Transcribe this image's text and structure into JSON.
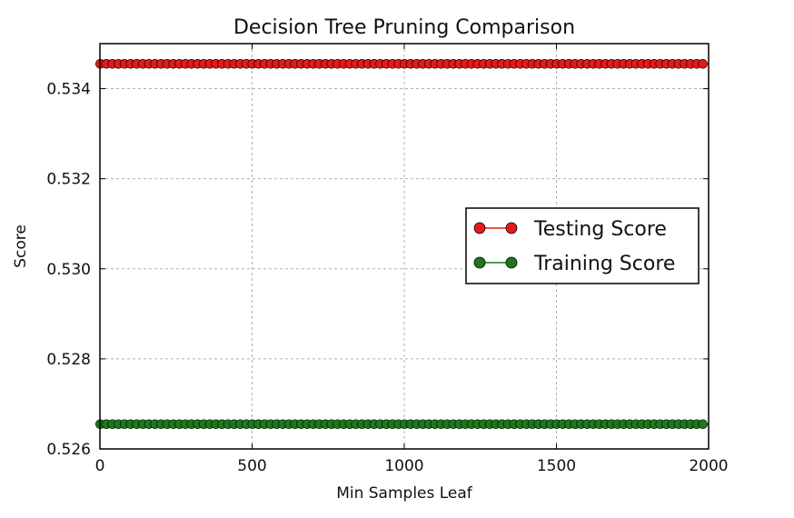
{
  "chart_data": {
    "type": "line",
    "title": "Decision Tree Pruning Comparison",
    "xlabel": "Min Samples Leaf",
    "ylabel": "Score",
    "xlim": [
      0,
      2000
    ],
    "ylim": [
      0.526,
      0.535
    ],
    "xticks": [
      0,
      500,
      1000,
      1500,
      2000
    ],
    "xtick_labels": [
      "0",
      "500",
      "1000",
      "1500",
      "2000"
    ],
    "yticks": [
      0.526,
      0.528,
      0.53,
      0.532,
      0.534
    ],
    "ytick_labels": [
      "0.526",
      "0.528",
      "0.530",
      "0.532",
      "0.534"
    ],
    "grid": true,
    "legend_position": "center-right",
    "x_start": 1,
    "x_step": 20,
    "x_end": 2000,
    "series": [
      {
        "name": "Testing Score",
        "value": 0.53455,
        "color": "#e31a1c",
        "marker": "circle"
      },
      {
        "name": "Training Score",
        "value": 0.52655,
        "color": "#1a7a1a",
        "marker": "circle"
      }
    ]
  }
}
